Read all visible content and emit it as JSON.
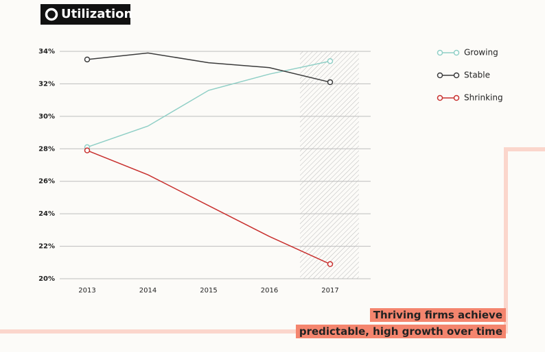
{
  "chart_data": {
    "type": "line",
    "title": "Utilization",
    "categories": [
      "2013",
      "2014",
      "2015",
      "2016",
      "2017"
    ],
    "series": [
      {
        "name": "Growing",
        "color": "#8fcfc6",
        "values": [
          28.1,
          29.4,
          31.6,
          32.6,
          33.4
        ]
      },
      {
        "name": "Stable",
        "color": "#3a3a3a",
        "values": [
          33.5,
          33.9,
          33.3,
          33.0,
          32.1
        ]
      },
      {
        "name": "Shrinking",
        "color": "#c8302e",
        "values": [
          27.9,
          26.4,
          24.5,
          22.6,
          20.9
        ]
      }
    ],
    "ylim": [
      20,
      34
    ],
    "yticks": [
      {
        "value": 20,
        "label": "20%"
      },
      {
        "value": 22,
        "label": "22%"
      },
      {
        "value": 24,
        "label": "24%"
      },
      {
        "value": 26,
        "label": "26%"
      },
      {
        "value": 28,
        "label": "28%"
      },
      {
        "value": 30,
        "label": "30%"
      },
      {
        "value": 32,
        "label": "32%"
      },
      {
        "value": 34,
        "label": "34%"
      }
    ],
    "grid": true,
    "legend": "right",
    "annotations": [
      "Thriving firms achieve",
      "predictable, high growth over time"
    ]
  }
}
